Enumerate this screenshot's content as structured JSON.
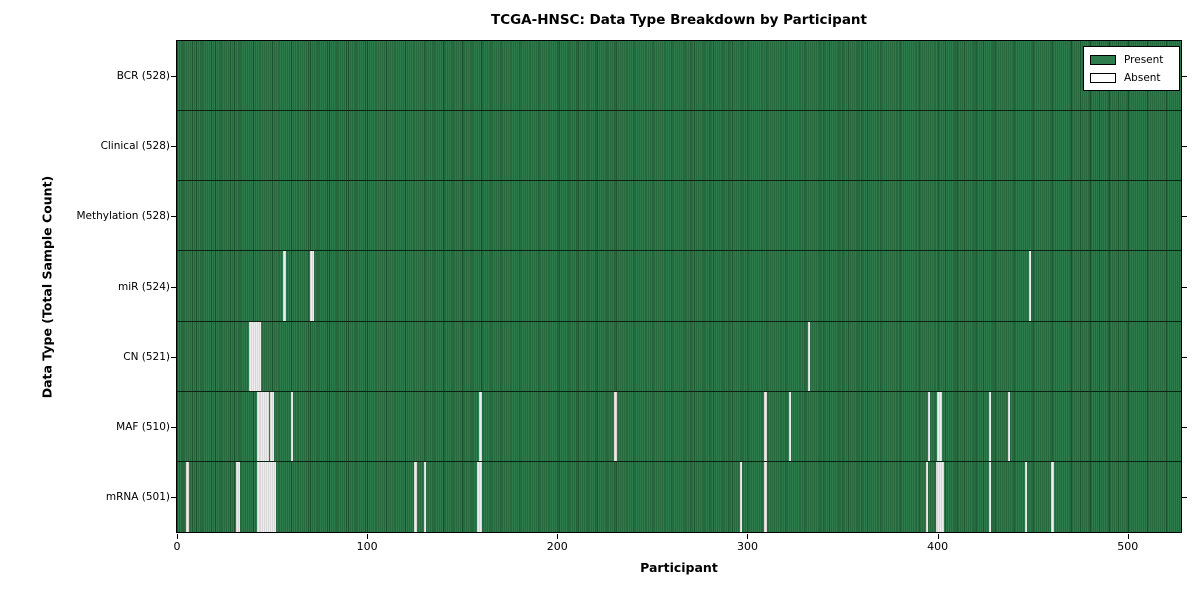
{
  "chart_data": {
    "type": "heatmap",
    "title": "TCGA-HNSC: Data Type Breakdown by Participant",
    "xlabel": "Participant",
    "ylabel": "Data Type (Total Sample Count)",
    "x_ticks": [
      0,
      100,
      200,
      300,
      400,
      500
    ],
    "x_range": [
      0,
      528
    ],
    "n_participants": 528,
    "grid": "row-separators",
    "legend_position": "upper-right",
    "legend": [
      {
        "label": "Present",
        "color": "#2e7c4b"
      },
      {
        "label": "Absent",
        "color": "#ffffff"
      }
    ],
    "colors": {
      "present": "#2e7c4b",
      "absent_bar": "#ededed",
      "bar_edge": "#0a2414",
      "frame": "#000000",
      "background": "#ffffff"
    },
    "rows": [
      {
        "key": "bcr",
        "label": "BCR (528)",
        "data_type": "BCR",
        "present_count": 528,
        "absent_participants": []
      },
      {
        "key": "clinical",
        "label": "Clinical (528)",
        "data_type": "Clinical",
        "present_count": 528,
        "absent_participants": []
      },
      {
        "key": "methylation",
        "label": "Methylation (528)",
        "data_type": "Methylation",
        "present_count": 528,
        "absent_participants": []
      },
      {
        "key": "mir",
        "label": "miR (524)",
        "data_type": "miR",
        "present_count": 524,
        "absent_participants": [
          56,
          70,
          71,
          448
        ]
      },
      {
        "key": "cn",
        "label": "CN (521)",
        "data_type": "CN",
        "present_count": 521,
        "absent_participants": [
          38,
          39,
          40,
          41,
          42,
          43,
          332
        ]
      },
      {
        "key": "maf",
        "label": "MAF (510)",
        "data_type": "MAF",
        "present_count": 510,
        "absent_participants": [
          42,
          43,
          44,
          45,
          46,
          47,
          49,
          50,
          60,
          159,
          230,
          309,
          322,
          395,
          400,
          401,
          427,
          437
        ]
      },
      {
        "key": "mrna",
        "label": "mRNA (501)",
        "data_type": "mRNA",
        "present_count": 501,
        "absent_participants": [
          5,
          31,
          32,
          42,
          43,
          44,
          45,
          46,
          47,
          48,
          49,
          50,
          51,
          125,
          130,
          158,
          159,
          296,
          309,
          394,
          399,
          400,
          401,
          402,
          427,
          446,
          460
        ]
      }
    ]
  }
}
